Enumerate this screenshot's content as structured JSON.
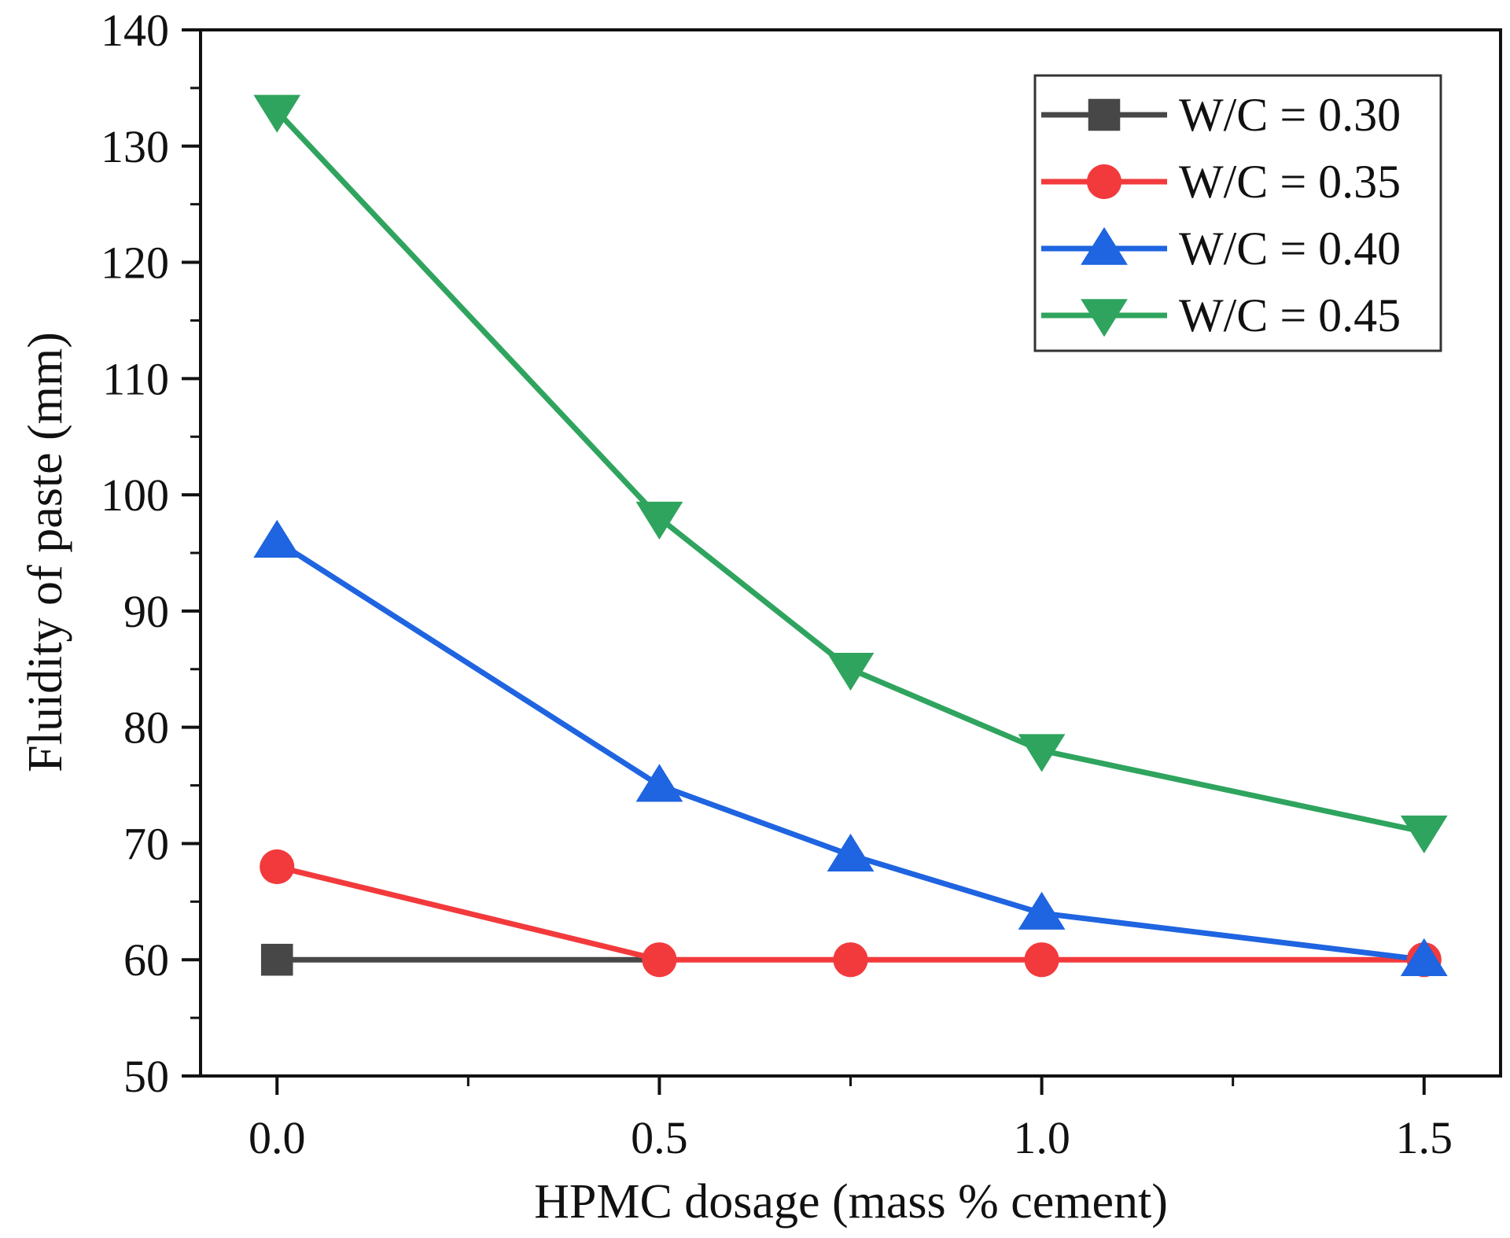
{
  "chart_data": {
    "type": "line",
    "title": "",
    "xlabel": "HPMC dosage (mass % cement)",
    "ylabel": "Fluidity of paste (mm)",
    "xlim": [
      -0.1,
      1.6
    ],
    "ylim": [
      50,
      140
    ],
    "xticks": [
      0.0,
      0.5,
      1.0,
      1.5
    ],
    "xtick_labels": [
      "0.0",
      "0.5",
      "1.0",
      "1.5"
    ],
    "yticks": [
      50,
      60,
      70,
      80,
      90,
      100,
      110,
      120,
      130,
      140
    ],
    "ytick_labels": [
      "50",
      "60",
      "70",
      "80",
      "90",
      "100",
      "110",
      "120",
      "130",
      "140"
    ],
    "x": [
      0.0,
      0.5,
      0.75,
      1.0,
      1.5
    ],
    "legend_position": "top-right",
    "grid": false,
    "series": [
      {
        "name": "W/C = 0.30",
        "color": "#474747",
        "marker": "square",
        "x": [
          0.0
        ],
        "values": [
          60
        ]
      },
      {
        "name": "W/C = 0.35",
        "color": "#f23a3c",
        "marker": "circle",
        "x": [
          0.0,
          0.5,
          0.75,
          1.0,
          1.5
        ],
        "values": [
          68,
          60,
          60,
          60,
          60
        ]
      },
      {
        "name": "W/C = 0.40",
        "color": "#1f64e0",
        "marker": "triangle-up",
        "x": [
          0.0,
          0.5,
          0.75,
          1.0,
          1.5
        ],
        "values": [
          96,
          75,
          69,
          64,
          60
        ]
      },
      {
        "name": "W/C = 0.45",
        "color": "#2fa45e",
        "marker": "triangle-down",
        "x": [
          0.0,
          0.5,
          0.75,
          1.0,
          1.5
        ],
        "values": [
          133,
          98,
          85,
          78,
          71
        ]
      }
    ],
    "extra_lines": [
      {
        "series": "W/C = 0.30",
        "x": [
          0.0,
          0.5
        ],
        "values": [
          60,
          60
        ]
      }
    ]
  }
}
